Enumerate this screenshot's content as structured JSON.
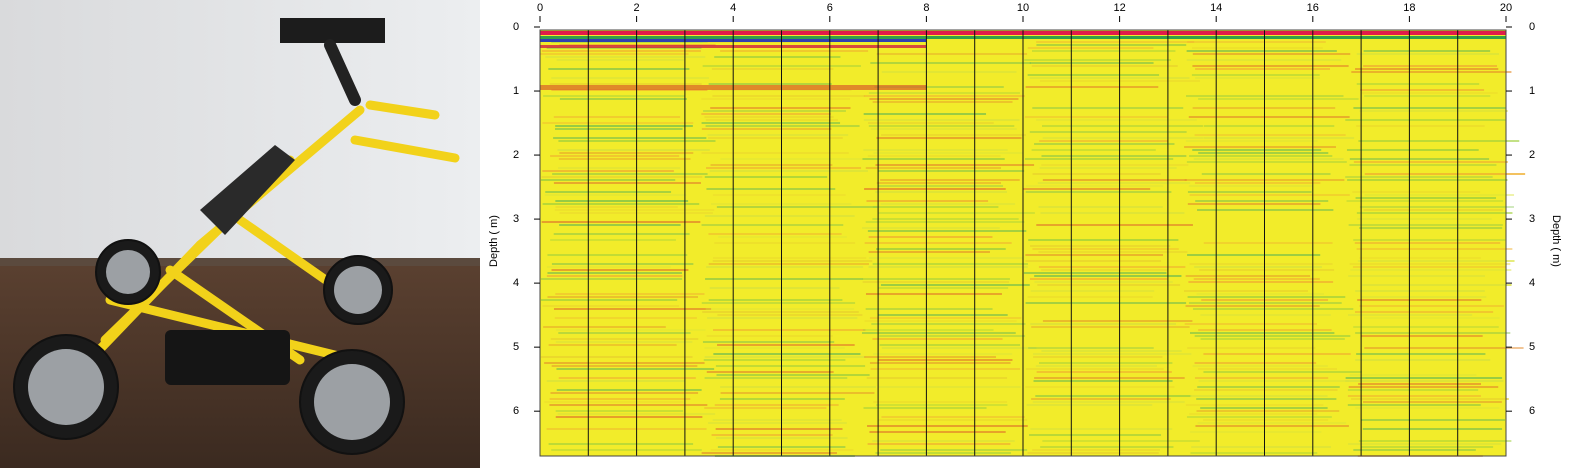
{
  "chart_data": {
    "type": "radargram",
    "xlim": [
      0,
      20
    ],
    "xticks": [
      0,
      2,
      4,
      6,
      8,
      10,
      12,
      14,
      16,
      18,
      20
    ],
    "ylim": [
      0,
      6.7
    ],
    "yticks": [
      0,
      1,
      2,
      3,
      4,
      5,
      6
    ],
    "y_inverted": true,
    "y_label": "Depth ( m)"
  }
}
